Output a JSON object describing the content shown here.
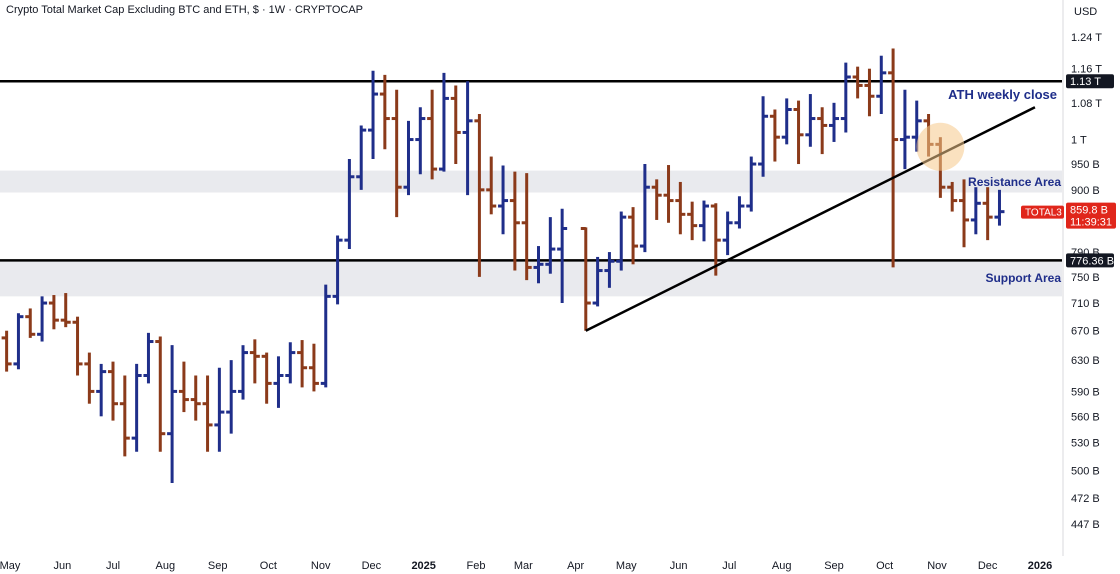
{
  "header": {
    "title": "Crypto Total Market Cap Excluding BTC and ETH, $ · 1W · CRYPTOCAP",
    "currency": "USD"
  },
  "colors": {
    "up": "#1f2e8a",
    "down": "#8b3a1a",
    "line": "#000000",
    "band": "#e9eaee",
    "last_price_bg": "#e0261b",
    "annotation": "#1f2e8a",
    "highlight": "#f5c98a"
  },
  "chart_data": {
    "type": "ohlc",
    "symbol": "TOTAL3",
    "y_scale": "log",
    "ylim_billions": [
      425,
      1290
    ],
    "y_ticks": [
      {
        "label": "1.24 T",
        "value": 1240
      },
      {
        "label": "1.16 T",
        "value": 1160
      },
      {
        "label": "1.08 T",
        "value": 1080
      },
      {
        "label": "1 T",
        "value": 1000
      },
      {
        "label": "950 B",
        "value": 950
      },
      {
        "label": "900 B",
        "value": 900
      },
      {
        "label": "790 B",
        "value": 790
      },
      {
        "label": "750 B",
        "value": 750
      },
      {
        "label": "710 B",
        "value": 710
      },
      {
        "label": "670 B",
        "value": 670
      },
      {
        "label": "630 B",
        "value": 630
      },
      {
        "label": "590 B",
        "value": 590
      },
      {
        "label": "560 B",
        "value": 560
      },
      {
        "label": "530 B",
        "value": 530
      },
      {
        "label": "500 B",
        "value": 500
      },
      {
        "label": "472 B",
        "value": 472
      },
      {
        "label": "447 B",
        "value": 447
      }
    ],
    "x_ticks": [
      {
        "label": "May",
        "date": "2024-05-01"
      },
      {
        "label": "Jun",
        "date": "2024-06-01"
      },
      {
        "label": "Jul",
        "date": "2024-07-01"
      },
      {
        "label": "Aug",
        "date": "2024-08-01"
      },
      {
        "label": "Sep",
        "date": "2024-09-01"
      },
      {
        "label": "Oct",
        "date": "2024-10-01"
      },
      {
        "label": "Nov",
        "date": "2024-11-01"
      },
      {
        "label": "Dec",
        "date": "2024-12-01"
      },
      {
        "label": "2025",
        "date": "2025-01-01",
        "bold": true
      },
      {
        "label": "Feb",
        "date": "2025-02-01"
      },
      {
        "label": "Mar",
        "date": "2025-03-01"
      },
      {
        "label": "Apr",
        "date": "2025-04-01"
      },
      {
        "label": "May",
        "date": "2025-05-01"
      },
      {
        "label": "Jun",
        "date": "2025-06-01"
      },
      {
        "label": "Jul",
        "date": "2025-07-01"
      },
      {
        "label": "Aug",
        "date": "2025-08-01"
      },
      {
        "label": "Sep",
        "date": "2025-09-01"
      },
      {
        "label": "Oct",
        "date": "2025-10-01"
      },
      {
        "label": "Nov",
        "date": "2025-11-01"
      },
      {
        "label": "Dec",
        "date": "2025-12-01"
      },
      {
        "label": "2026",
        "date": "2026-01-01",
        "bold": true
      }
    ],
    "bars": [
      [
        "2024-04-15",
        642,
        675,
        605,
        640
      ],
      [
        "2024-04-22",
        640,
        668,
        625,
        660
      ],
      [
        "2024-04-29",
        660,
        670,
        615,
        625
      ],
      [
        "2024-05-06",
        625,
        695,
        618,
        690
      ],
      [
        "2024-05-13",
        690,
        702,
        660,
        665
      ],
      [
        "2024-05-20",
        665,
        720,
        655,
        710
      ],
      [
        "2024-05-27",
        710,
        722,
        672,
        685
      ],
      [
        "2024-06-03",
        685,
        725,
        675,
        682
      ],
      [
        "2024-06-10",
        682,
        690,
        610,
        625
      ],
      [
        "2024-06-17",
        625,
        640,
        575,
        590
      ],
      [
        "2024-06-24",
        590,
        625,
        560,
        615
      ],
      [
        "2024-07-01",
        615,
        628,
        555,
        575
      ],
      [
        "2024-07-08",
        575,
        610,
        515,
        535
      ],
      [
        "2024-07-15",
        535,
        625,
        520,
        610
      ],
      [
        "2024-07-22",
        610,
        667,
        600,
        655
      ],
      [
        "2024-07-29",
        655,
        662,
        520,
        540
      ],
      [
        "2024-08-05",
        540,
        650,
        487,
        590
      ],
      [
        "2024-08-12",
        590,
        628,
        565,
        580
      ],
      [
        "2024-08-19",
        580,
        610,
        555,
        575
      ],
      [
        "2024-08-26",
        575,
        610,
        520,
        550
      ],
      [
        "2024-09-02",
        550,
        620,
        520,
        565
      ],
      [
        "2024-09-09",
        565,
        630,
        540,
        590
      ],
      [
        "2024-09-16",
        590,
        650,
        580,
        640
      ],
      [
        "2024-09-23",
        640,
        658,
        600,
        635
      ],
      [
        "2024-09-30",
        635,
        640,
        575,
        600
      ],
      [
        "2024-10-07",
        600,
        635,
        570,
        610
      ],
      [
        "2024-10-14",
        610,
        654,
        600,
        640
      ],
      [
        "2024-10-21",
        640,
        657,
        595,
        620
      ],
      [
        "2024-10-28",
        620,
        652,
        590,
        600
      ],
      [
        "2024-11-04",
        600,
        738,
        595,
        720
      ],
      [
        "2024-11-11",
        720,
        818,
        708,
        810
      ],
      [
        "2024-11-18",
        810,
        960,
        795,
        925
      ],
      [
        "2024-11-25",
        925,
        1030,
        900,
        1020
      ],
      [
        "2024-12-02",
        1020,
        1155,
        960,
        1100
      ],
      [
        "2024-12-09",
        1100,
        1145,
        980,
        1045
      ],
      [
        "2024-12-16",
        1045,
        1110,
        850,
        905
      ],
      [
        "2024-12-23",
        905,
        1040,
        890,
        1000
      ],
      [
        "2024-12-30",
        1000,
        1070,
        930,
        1045
      ],
      [
        "2025-01-06",
        1045,
        1110,
        920,
        940
      ],
      [
        "2025-01-13",
        940,
        1150,
        935,
        1090
      ],
      [
        "2025-01-20",
        1090,
        1120,
        950,
        1015
      ],
      [
        "2025-01-27",
        1015,
        1130,
        890,
        1040
      ],
      [
        "2025-02-03",
        1040,
        1055,
        750,
        900
      ],
      [
        "2025-02-10",
        900,
        965,
        855,
        870
      ],
      [
        "2025-02-17",
        870,
        947,
        820,
        880
      ],
      [
        "2025-02-24",
        880,
        935,
        760,
        840
      ],
      [
        "2025-03-03",
        840,
        932,
        745,
        765
      ],
      [
        "2025-03-10",
        765,
        800,
        740,
        770
      ],
      [
        "2025-03-17",
        770,
        850,
        755,
        795
      ],
      [
        "2025-03-24",
        795,
        865,
        710,
        830
      ],
      [
        "2025-04-07",
        830,
        832,
        670,
        710
      ],
      [
        "2025-04-14",
        710,
        782,
        705,
        760
      ],
      [
        "2025-04-21",
        760,
        790,
        733,
        775
      ],
      [
        "2025-04-28",
        775,
        860,
        760,
        850
      ],
      [
        "2025-05-05",
        850,
        868,
        770,
        800
      ],
      [
        "2025-05-12",
        800,
        950,
        790,
        905
      ],
      [
        "2025-05-19",
        905,
        920,
        845,
        890
      ],
      [
        "2025-05-26",
        890,
        948,
        840,
        880
      ],
      [
        "2025-06-02",
        880,
        915,
        820,
        855
      ],
      [
        "2025-06-09",
        855,
        878,
        810,
        835
      ],
      [
        "2025-06-16",
        835,
        880,
        808,
        870
      ],
      [
        "2025-06-23",
        870,
        875,
        752,
        810
      ],
      [
        "2025-06-30",
        810,
        860,
        785,
        840
      ],
      [
        "2025-07-07",
        840,
        888,
        830,
        870
      ],
      [
        "2025-07-14",
        870,
        965,
        860,
        950
      ],
      [
        "2025-07-21",
        950,
        1095,
        925,
        1050
      ],
      [
        "2025-07-28",
        1050,
        1065,
        955,
        1005
      ],
      [
        "2025-08-04",
        1005,
        1090,
        990,
        1065
      ],
      [
        "2025-08-11",
        1065,
        1085,
        950,
        1010
      ],
      [
        "2025-08-18",
        1010,
        1100,
        985,
        1045
      ],
      [
        "2025-08-25",
        1045,
        1070,
        970,
        1030
      ],
      [
        "2025-09-01",
        1030,
        1080,
        995,
        1045
      ],
      [
        "2025-09-08",
        1045,
        1175,
        1015,
        1140
      ],
      [
        "2025-09-15",
        1140,
        1165,
        1090,
        1120
      ],
      [
        "2025-09-22",
        1120,
        1160,
        1050,
        1095
      ],
      [
        "2025-09-29",
        1095,
        1192,
        1055,
        1150
      ],
      [
        "2025-10-06",
        1150,
        1210,
        765,
        1000
      ],
      [
        "2025-10-13",
        1000,
        1110,
        940,
        1005
      ],
      [
        "2025-10-20",
        1005,
        1085,
        975,
        1040
      ],
      [
        "2025-10-27",
        1040,
        1055,
        965,
        990
      ],
      [
        "2025-11-03",
        990,
        1005,
        885,
        905
      ],
      [
        "2025-11-10",
        905,
        915,
        860,
        880
      ],
      [
        "2025-11-17",
        880,
        920,
        798,
        845
      ],
      [
        "2025-11-24",
        845,
        905,
        820,
        875
      ],
      [
        "2025-12-01",
        875,
        905,
        810,
        850
      ],
      [
        "2025-12-08",
        850,
        900,
        835,
        859.8
      ]
    ],
    "horizontal_lines": [
      {
        "value": 1130,
        "label": "1.13 T"
      },
      {
        "value": 776.36,
        "label": "776.36 B"
      }
    ],
    "bands": [
      {
        "name": "Resistance Area",
        "from": 895,
        "to": 937
      },
      {
        "name": "Support Area",
        "from": 720,
        "to": 776
      }
    ],
    "trendline": {
      "from": [
        "2025-04-07",
        670
      ],
      "to": [
        "2025-12-29",
        1070
      ]
    },
    "last_price": {
      "symbol": "TOTAL3",
      "value": 859.8,
      "label": "859.8 B",
      "countdown": "11:39:31"
    },
    "annotations": [
      "ATH weekly close",
      "Resistance Area",
      "Support Area"
    ]
  }
}
